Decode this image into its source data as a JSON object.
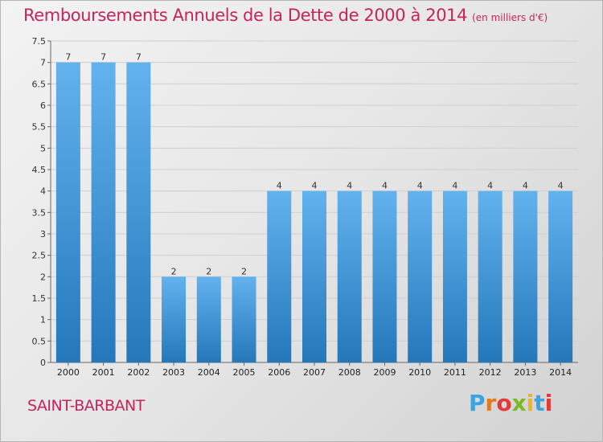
{
  "title": "Remboursements Annuels de la Dette de 2000 à 2014",
  "unit_note": "(en milliers d'€)",
  "commune": "SAINT-BARBANT",
  "logo": {
    "letters": [
      "P",
      "r",
      "o",
      "x",
      "i",
      "t",
      "i"
    ],
    "colors": [
      "#3aa3e0",
      "#e37a1f",
      "#e23a3a",
      "#7bb928",
      "#f0b420",
      "#3aa3e0",
      "#e23a3a"
    ]
  },
  "colors": {
    "bar_light": "#62b2ee",
    "bar_dark": "#2478ba",
    "title": "#c7245c"
  },
  "chart_data": {
    "type": "bar",
    "categories": [
      "2000",
      "2001",
      "2002",
      "2003",
      "2004",
      "2005",
      "2006",
      "2007",
      "2008",
      "2009",
      "2010",
      "2011",
      "2012",
      "2013",
      "2014"
    ],
    "values": [
      7,
      7,
      7,
      2,
      2,
      2,
      4,
      4,
      4,
      4,
      4,
      4,
      4,
      4,
      4
    ],
    "ylim": [
      0,
      7.5
    ],
    "yticks": [
      "0",
      "0.5",
      "1",
      "1.5",
      "2",
      "2.5",
      "3",
      "3.5",
      "4",
      "4.5",
      "5",
      "5.5",
      "6",
      "6.5",
      "7",
      "7.5"
    ],
    "ytick_values": [
      0,
      0.5,
      1,
      1.5,
      2,
      2.5,
      3,
      3.5,
      4,
      4.5,
      5,
      5.5,
      6,
      6.5,
      7,
      7.5
    ],
    "grid": true,
    "title": "Remboursements Annuels de la Dette de 2000 à 2014",
    "xlabel": "",
    "ylabel": ""
  }
}
